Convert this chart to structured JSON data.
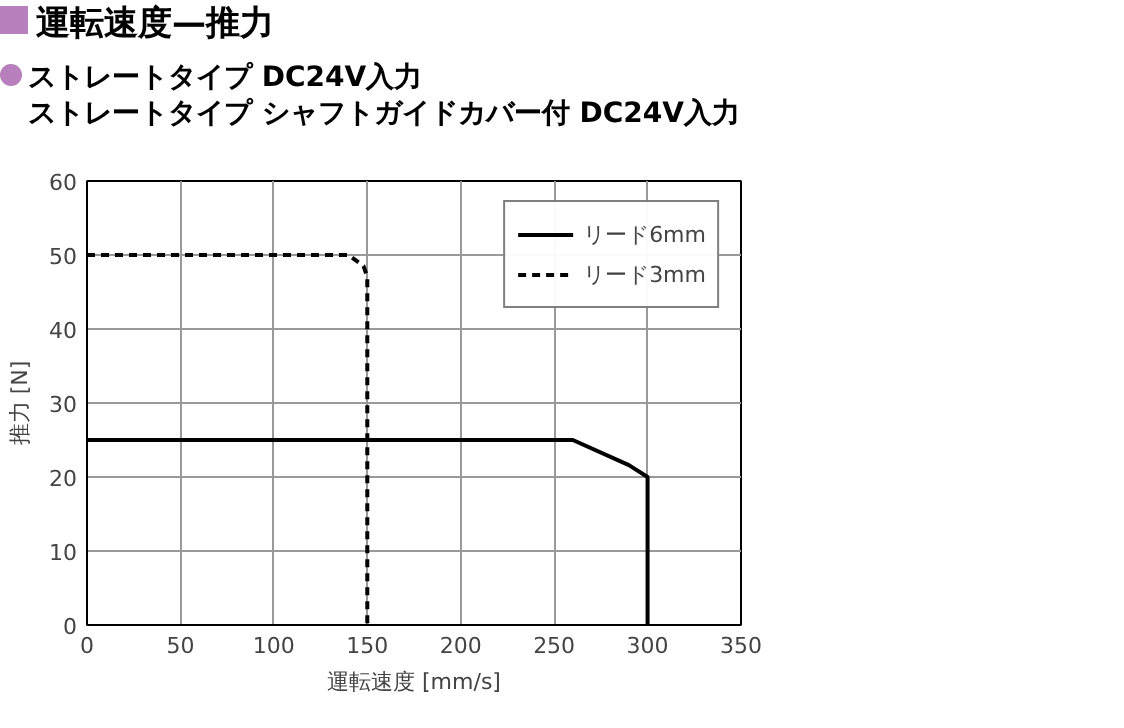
{
  "chart_data": {
    "type": "line",
    "title": "運転速度—推力",
    "subtitle": "ストレートタイプ DC24V入力",
    "annotations": [
      "ストレートタイプ シャフトガイドカバー付 DC24V入力"
    ],
    "xlabel": "運転速度 [mm/s]",
    "ylabel": "推力 [N]",
    "xlim": [
      0,
      350
    ],
    "ylim": [
      0,
      60
    ],
    "xticks": [
      0,
      50,
      100,
      150,
      200,
      250,
      300,
      350
    ],
    "yticks": [
      0,
      10,
      20,
      30,
      40,
      50,
      60
    ],
    "grid": true,
    "legend": "top right",
    "series": [
      {
        "name": "リード6mm",
        "color": "#000000",
        "line_style": "solid",
        "x": [
          0,
          260,
          290,
          300,
          300
        ],
        "values": [
          25,
          25,
          21.6,
          20,
          0
        ]
      },
      {
        "name": "リード3mm",
        "color": "#000000",
        "line_style": "dashed",
        "x": [
          0,
          140,
          148,
          150,
          150
        ],
        "values": [
          50,
          50,
          48.5,
          47,
          0
        ]
      }
    ]
  }
}
